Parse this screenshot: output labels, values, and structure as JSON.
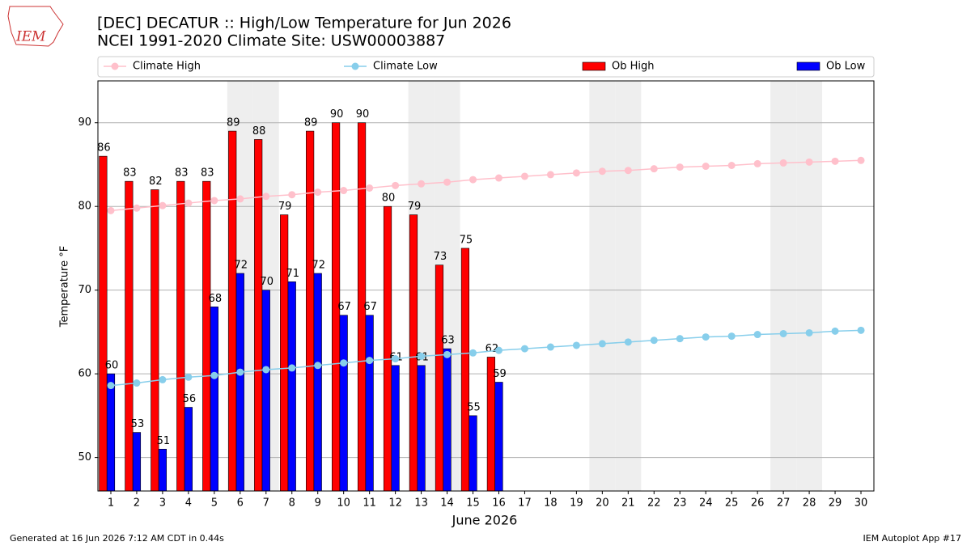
{
  "chart_data": {
    "type": "bar_line",
    "logo_text": "IEM",
    "title": "[DEC] DECATUR :: High/Low Temperature for Jun 2026",
    "subtitle": "NCEI 1991-2020 Climate Site: USW00003887",
    "x_label": "June 2026",
    "y_label": "Temperature °F",
    "footer_left": "Generated at 16 Jun 2026 7:12 AM CDT in 0.44s",
    "footer_right": "IEM Autoplot App #17",
    "x": [
      1,
      2,
      3,
      4,
      5,
      6,
      7,
      8,
      9,
      10,
      11,
      12,
      13,
      14,
      15,
      16,
      17,
      18,
      19,
      20,
      21,
      22,
      23,
      24,
      25,
      26,
      27,
      28,
      29,
      30
    ],
    "xlim": [
      0.5,
      30.5
    ],
    "xticks": [
      1,
      2,
      3,
      4,
      5,
      6,
      7,
      8,
      9,
      10,
      11,
      12,
      13,
      14,
      15,
      16,
      17,
      18,
      19,
      20,
      21,
      22,
      23,
      24,
      25,
      26,
      27,
      28,
      29,
      30
    ],
    "ylim": [
      46,
      95
    ],
    "yticks": [
      50,
      60,
      70,
      80,
      90
    ],
    "grid": true,
    "shaded_days": [
      6,
      7,
      13,
      14,
      20,
      21,
      27,
      28
    ],
    "legend": "top",
    "series": [
      {
        "name": "Climate High",
        "type": "line",
        "color": "#ffc0cb",
        "values": [
          79.5,
          79.8,
          80.1,
          80.4,
          80.7,
          80.9,
          81.2,
          81.4,
          81.7,
          81.9,
          82.2,
          82.5,
          82.7,
          82.9,
          83.2,
          83.4,
          83.6,
          83.8,
          84.0,
          84.2,
          84.3,
          84.5,
          84.7,
          84.8,
          84.9,
          85.1,
          85.2,
          85.3,
          85.4,
          85.5
        ]
      },
      {
        "name": "Climate Low",
        "type": "line",
        "color": "#87ceeb",
        "values": [
          58.6,
          58.9,
          59.3,
          59.6,
          59.8,
          60.2,
          60.5,
          60.7,
          61.0,
          61.3,
          61.6,
          61.8,
          62.1,
          62.3,
          62.5,
          62.8,
          63.0,
          63.2,
          63.4,
          63.6,
          63.8,
          64.0,
          64.2,
          64.4,
          64.5,
          64.7,
          64.8,
          64.9,
          65.1,
          65.2
        ]
      },
      {
        "name": "Ob High",
        "type": "bar",
        "color": "#ff0000",
        "values": [
          86,
          83,
          82,
          83,
          83,
          89,
          88,
          79,
          89,
          90,
          90,
          80,
          79,
          73,
          75,
          62,
          null,
          null,
          null,
          null,
          null,
          null,
          null,
          null,
          null,
          null,
          null,
          null,
          null,
          null
        ]
      },
      {
        "name": "Ob Low",
        "type": "bar",
        "color": "#0000ff",
        "values": [
          60,
          53,
          51,
          56,
          68,
          72,
          70,
          71,
          72,
          67,
          67,
          61,
          61,
          63,
          55,
          59,
          null,
          null,
          null,
          null,
          null,
          null,
          null,
          null,
          null,
          null,
          null,
          null,
          null,
          null
        ]
      }
    ]
  }
}
